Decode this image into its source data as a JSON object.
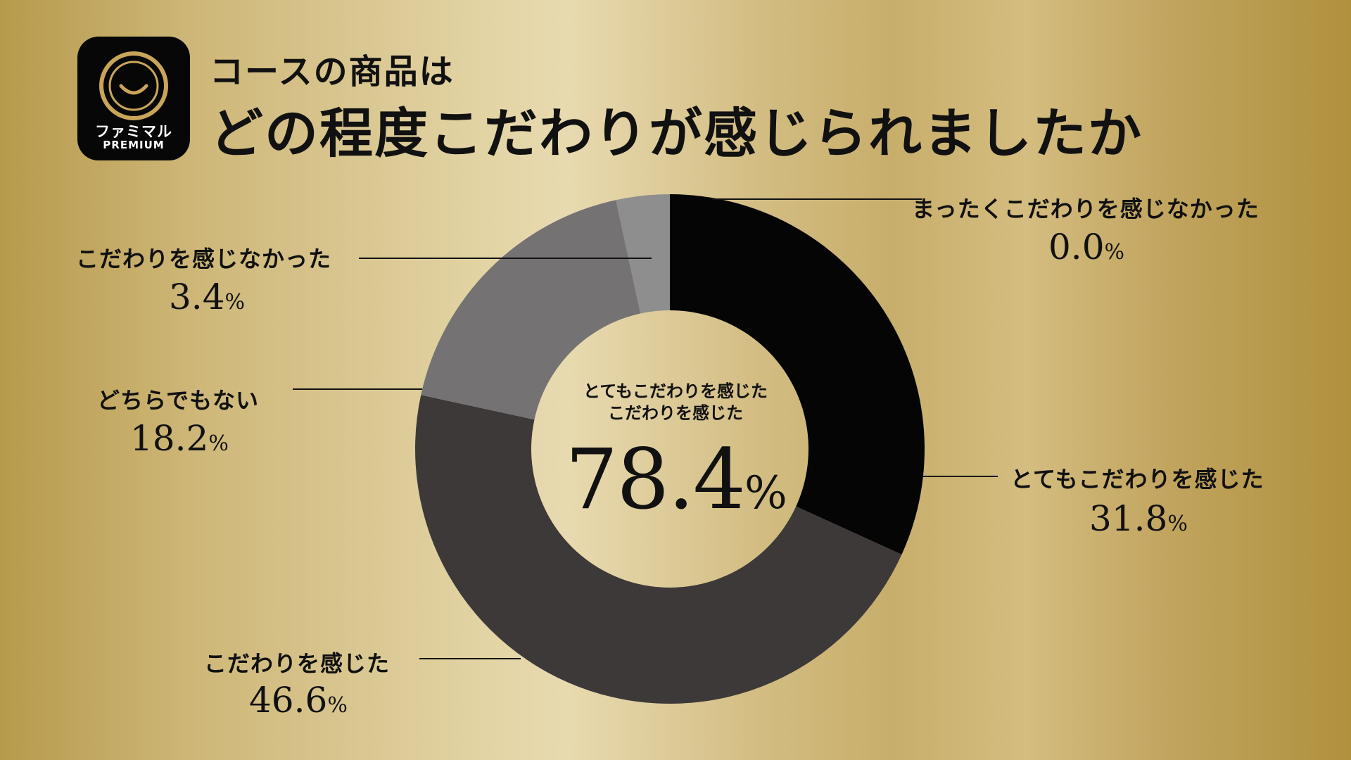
{
  "logo": {
    "line1": "ファミマル",
    "line2": "PREMIUM"
  },
  "title": {
    "subtitle": "コースの商品は",
    "main": "どの程度こだわりが感じられましたか"
  },
  "center": {
    "label_line1": "とてもこだわりを感じた",
    "label_line2": "こだわりを感じた",
    "value": "78.4",
    "unit": "%"
  },
  "chart_data": {
    "type": "pie",
    "style": "donut",
    "start": "12 o'clock, clockwise",
    "slices": [
      {
        "label": "とてもこだわりを感じた",
        "value": 31.8,
        "color": "#050505"
      },
      {
        "label": "こだわりを感じた",
        "value": 46.6,
        "color": "#3d3939"
      },
      {
        "label": "どちらでもない",
        "value": 18.2,
        "color": "#747273"
      },
      {
        "label": "こだわりを感じなかった",
        "value": 3.4,
        "color": "#8f8e8e"
      },
      {
        "label": "まったくこだわりを感じなかった",
        "value": 0.0,
        "color": "#8f8e8e"
      }
    ],
    "value_labels": [
      {
        "label": "とてもこだわりを感じた",
        "text": "31.8",
        "unit": "%"
      },
      {
        "label": "こだわりを感じた",
        "text": "46.6",
        "unit": "%"
      },
      {
        "label": "どちらでもない",
        "text": "18.2",
        "unit": "%"
      },
      {
        "label": "こだわりを感じなかった",
        "text": "3.4",
        "unit": "%"
      },
      {
        "label": "まったくこだわりを感じなかった",
        "text": "0.0",
        "unit": "%"
      }
    ],
    "leader_line_color": "#111111"
  }
}
